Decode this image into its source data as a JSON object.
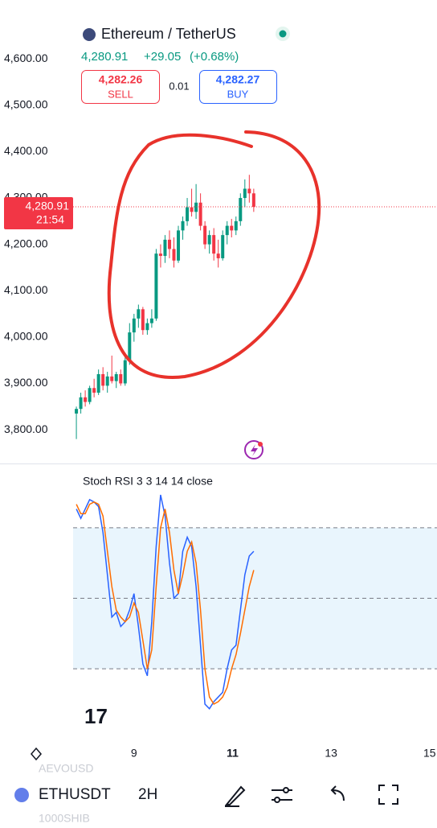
{
  "header": {
    "symbol_name": "Ethereum / TetherUS",
    "last": "4,280.91",
    "change": "+29.05",
    "change_pct": "(+0.68%)",
    "sell_price": "4,282.26",
    "sell_label": "SELL",
    "spread": "0.01",
    "buy_price": "4,282.27",
    "buy_label": "BUY"
  },
  "chart_data": [
    {
      "type": "candlestick",
      "x": [
        7.83,
        7.92,
        8.01,
        8.1,
        8.19,
        8.28,
        8.37,
        8.46,
        8.55,
        8.64,
        8.73,
        8.82,
        8.91,
        9.0,
        9.09,
        9.18,
        9.27,
        9.36,
        9.45,
        9.54,
        9.63,
        9.72,
        9.81,
        9.9,
        9.99,
        10.08,
        10.17,
        10.26,
        10.35,
        10.44,
        10.53,
        10.62,
        10.71,
        10.8,
        10.89,
        10.98,
        11.07,
        11.16,
        11.25,
        11.34,
        11.43
      ],
      "open": [
        3835,
        3845,
        3870,
        3860,
        3890,
        3880,
        3920,
        3895,
        3915,
        3905,
        3920,
        3900,
        3950,
        4010,
        4040,
        4060,
        4015,
        4030,
        4040,
        4180,
        4175,
        4210,
        4190,
        4165,
        4230,
        4250,
        4280,
        4270,
        4290,
        4240,
        4200,
        4220,
        4180,
        4170,
        4220,
        4240,
        4230,
        4250,
        4300,
        4320,
        4310
      ],
      "high": [
        3850,
        3880,
        3885,
        3895,
        3910,
        3930,
        3935,
        3925,
        3960,
        3925,
        3930,
        3960,
        4030,
        4050,
        4070,
        4065,
        4040,
        4060,
        4190,
        4200,
        4220,
        4230,
        4215,
        4240,
        4260,
        4300,
        4320,
        4330,
        4310,
        4250,
        4230,
        4235,
        4210,
        4230,
        4250,
        4255,
        4260,
        4310,
        4340,
        4350,
        4320
      ],
      "low": [
        3780,
        3835,
        3850,
        3855,
        3870,
        3875,
        3885,
        3880,
        3900,
        3890,
        3895,
        3895,
        3940,
        3990,
        4020,
        4005,
        4005,
        4020,
        4035,
        4150,
        4160,
        4170,
        4150,
        4160,
        4210,
        4240,
        4260,
        4255,
        4230,
        4190,
        4180,
        4165,
        4150,
        4165,
        4200,
        4215,
        4220,
        4240,
        4280,
        4290,
        4270
      ],
      "close": [
        3845,
        3870,
        3860,
        3890,
        3880,
        3920,
        3895,
        3915,
        3905,
        3920,
        3900,
        3950,
        4010,
        4040,
        4060,
        4015,
        4030,
        4040,
        4180,
        4175,
        4210,
        4190,
        4165,
        4230,
        4250,
        4280,
        4270,
        4290,
        4240,
        4200,
        4220,
        4180,
        4170,
        4220,
        4240,
        4230,
        4250,
        4300,
        4320,
        4310,
        4280.91
      ],
      "up_color": "#089981",
      "down_color": "#f23645",
      "xlim": [
        6.28,
        15.15
      ],
      "xticks": [
        9,
        11,
        13,
        15
      ],
      "ylim": [
        3729,
        4675
      ],
      "yticks": [
        {
          "value": 3800,
          "label": "3,800.00"
        },
        {
          "value": 3900,
          "label": "3,900.00"
        },
        {
          "value": 4000,
          "label": "4,000.00"
        },
        {
          "value": 4100,
          "label": "4,100.00"
        },
        {
          "value": 4200,
          "label": "4,200.00"
        },
        {
          "value": 4300,
          "label": "4,300.00"
        },
        {
          "value": 4400,
          "label": "4,400.00"
        },
        {
          "value": 4500,
          "label": "4,500.00"
        },
        {
          "value": 4600,
          "label": "4,600.00"
        }
      ],
      "last_price": {
        "value": 4280.91,
        "label": "4,280.91"
      },
      "countdown": "21:54"
    },
    {
      "type": "line",
      "title": "Stoch RSI 3 3 14 14 close",
      "x": [
        7.83,
        7.92,
        8.01,
        8.1,
        8.19,
        8.28,
        8.37,
        8.46,
        8.55,
        8.64,
        8.73,
        8.82,
        8.91,
        9.0,
        9.09,
        9.18,
        9.27,
        9.36,
        9.45,
        9.54,
        9.63,
        9.72,
        9.81,
        9.9,
        9.99,
        10.08,
        10.17,
        10.26,
        10.35,
        10.44,
        10.53,
        10.62,
        10.71,
        10.8,
        10.89,
        10.98,
        11.07,
        11.16,
        11.25,
        11.34,
        11.43
      ],
      "series": [
        {
          "color": "#2962ff",
          "values": [
            88,
            84,
            88,
            92,
            91,
            89,
            78,
            60,
            42,
            44,
            38,
            40,
            45,
            52,
            38,
            22,
            17,
            40,
            72,
            94,
            85,
            65,
            50,
            52,
            70,
            76,
            72,
            55,
            30,
            5,
            3,
            6,
            8,
            10,
            20,
            28,
            30,
            45,
            60,
            68,
            70
          ]
        },
        {
          "color": "#ff6d00",
          "values": [
            90,
            86,
            86,
            90,
            91,
            90,
            85,
            70,
            55,
            45,
            42,
            40,
            42,
            48,
            44,
            32,
            20,
            28,
            55,
            80,
            88,
            78,
            62,
            52,
            60,
            70,
            74,
            65,
            45,
            20,
            8,
            5,
            6,
            8,
            12,
            20,
            26,
            35,
            45,
            55,
            62
          ]
        }
      ],
      "xlim": [
        6.28,
        15.15
      ],
      "ylim": [
        -7,
        106
      ],
      "levels": [
        20,
        50,
        80
      ]
    }
  ],
  "toolbar": {
    "symbol": "ETHUSDT",
    "interval": "2H",
    "ghost_1": "AEVOUSD",
    "ghost_2": "1000SHIB"
  }
}
